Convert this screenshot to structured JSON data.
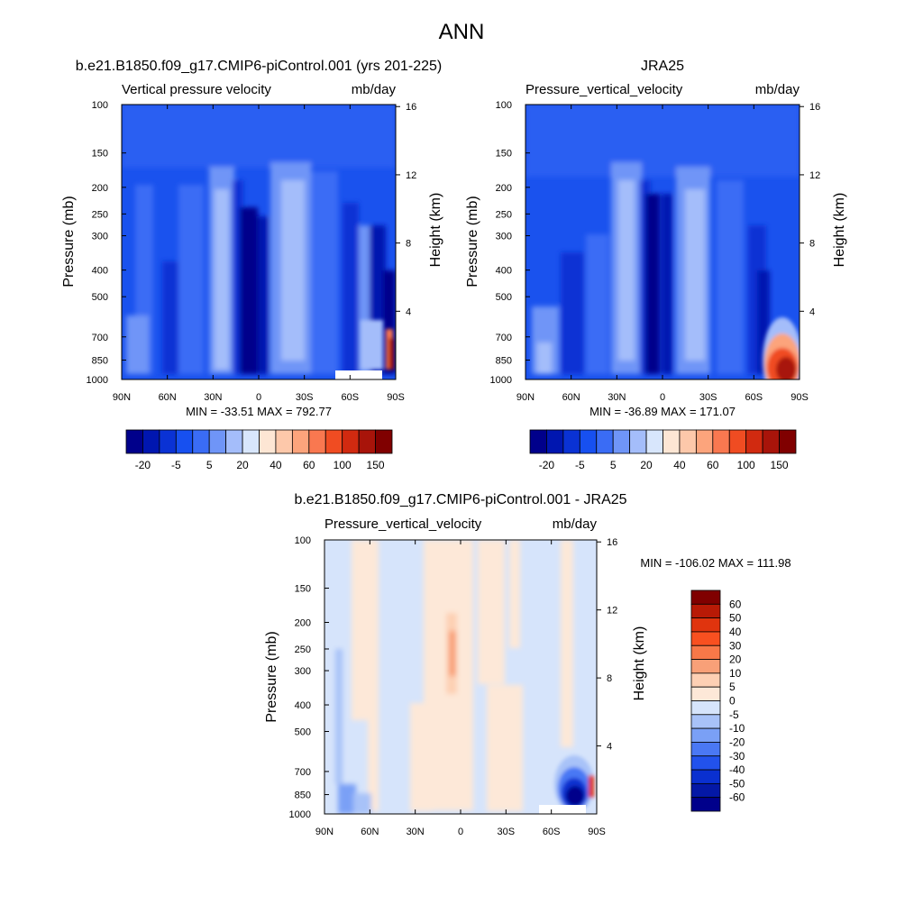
{
  "figure_title": "ANN",
  "chart_data": [
    {
      "type": "heatmap",
      "title": "b.e21.B1850.f09_g17.CMIP6-piControl.001 (yrs 201-225)",
      "left_label": "Vertical pressure velocity",
      "right_label": "mb/day",
      "ylabel": "Pressure (mb)",
      "y2label": "Height (km)",
      "xlabels": [
        "90N",
        "60N",
        "30N",
        "0",
        "30S",
        "60S",
        "90S"
      ],
      "ylevels": [
        100,
        150,
        200,
        250,
        300,
        400,
        500,
        700,
        850,
        1000
      ],
      "y2ticks": [
        16,
        12,
        8,
        4
      ],
      "stats": "MIN = -33.51  MAX = 792.77",
      "colorbar_labels": [
        "-20",
        "-5",
        "5",
        "20",
        "40",
        "60",
        "100",
        "150"
      ]
    },
    {
      "type": "heatmap",
      "title": "JRA25",
      "left_label": "Pressure_vertical_velocity",
      "right_label": "mb/day",
      "ylabel": "Pressure (mb)",
      "y2label": "Height (km)",
      "xlabels": [
        "90N",
        "60N",
        "30N",
        "0",
        "30S",
        "60S",
        "90S"
      ],
      "ylevels": [
        100,
        150,
        200,
        250,
        300,
        400,
        500,
        700,
        850,
        1000
      ],
      "y2ticks": [
        16,
        12,
        8,
        4
      ],
      "stats": "MIN = -36.89  MAX = 171.07",
      "colorbar_labels": [
        "-20",
        "-5",
        "5",
        "20",
        "40",
        "60",
        "100",
        "150"
      ]
    },
    {
      "type": "heatmap",
      "title": "b.e21.B1850.f09_g17.CMIP6-piControl.001 - JRA25",
      "left_label": "Pressure_vertical_velocity",
      "right_label": "mb/day",
      "ylabel": "Pressure (mb)",
      "y2label": "Height (km)",
      "xlabels": [
        "90N",
        "60N",
        "30N",
        "0",
        "30S",
        "60S",
        "90S"
      ],
      "ylevels": [
        100,
        150,
        200,
        250,
        300,
        400,
        500,
        700,
        850,
        1000
      ],
      "y2ticks": [
        16,
        12,
        8,
        4
      ],
      "stats": "MIN = -106.02  MAX = 111.98",
      "colorbar_labels": [
        "60",
        "50",
        "40",
        "30",
        "20",
        "10",
        "5",
        "0",
        "-5",
        "-10",
        "-20",
        "-30",
        "-40",
        "-50",
        "-60"
      ]
    }
  ],
  "colors": {
    "main_palette": [
      "#00008b",
      "#0016b0",
      "#0a32d4",
      "#1750f0",
      "#3a6cf5",
      "#6f95f7",
      "#a4bdfa",
      "#d8e6fc",
      "#fde6d4",
      "#fdc8aa",
      "#fca47c",
      "#f97850",
      "#f04c22",
      "#d12a10",
      "#a8140a",
      "#800000"
    ],
    "diff_palette": [
      "#800000",
      "#b81a06",
      "#e0340e",
      "#f85020",
      "#f87848",
      "#f8a078",
      "#fdd0b4",
      "#fde8d8",
      "#d6e4fb",
      "#a8c2f8",
      "#7aa0f6",
      "#4a78f4",
      "#2252ec",
      "#0a30d0",
      "#0418a6",
      "#00008b"
    ]
  }
}
